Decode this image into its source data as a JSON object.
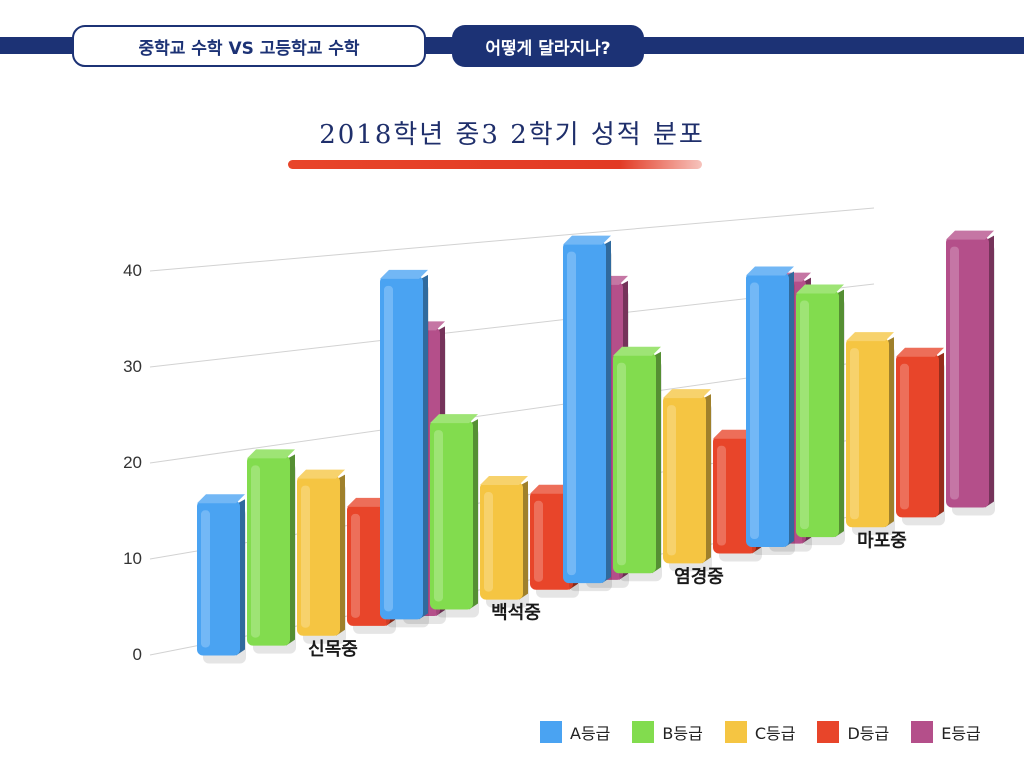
{
  "header": {
    "tab_left": "중학교 수학 VS 고등학교 수학",
    "tab_right": "어떻게 달라지나?"
  },
  "chart_data": {
    "type": "bar",
    "title": "2018학년 중3 2학기 성적 분포",
    "categories": [
      "신목중",
      "백석중",
      "염경중",
      "마포중"
    ],
    "series": [
      {
        "name": "A등급",
        "color": "#4aa3f2",
        "values": [
          15,
          37,
          39,
          33
        ]
      },
      {
        "name": "B등급",
        "color": "#82dc4e",
        "values": [
          19,
          20,
          25,
          30
        ]
      },
      {
        "name": "C등급",
        "color": "#f5c542",
        "values": [
          16,
          12,
          19,
          23
        ]
      },
      {
        "name": "D등급",
        "color": "#e8452a",
        "values": [
          12,
          10,
          13,
          20
        ]
      },
      {
        "name": "E등급",
        "color": "#b44f8a",
        "values": [
          31,
          34,
          32,
          35
        ]
      }
    ],
    "yticks": [
      0,
      10,
      20,
      30,
      40
    ],
    "ylim": [
      0,
      40
    ],
    "grid": true,
    "legend_position": "bottom-right"
  }
}
